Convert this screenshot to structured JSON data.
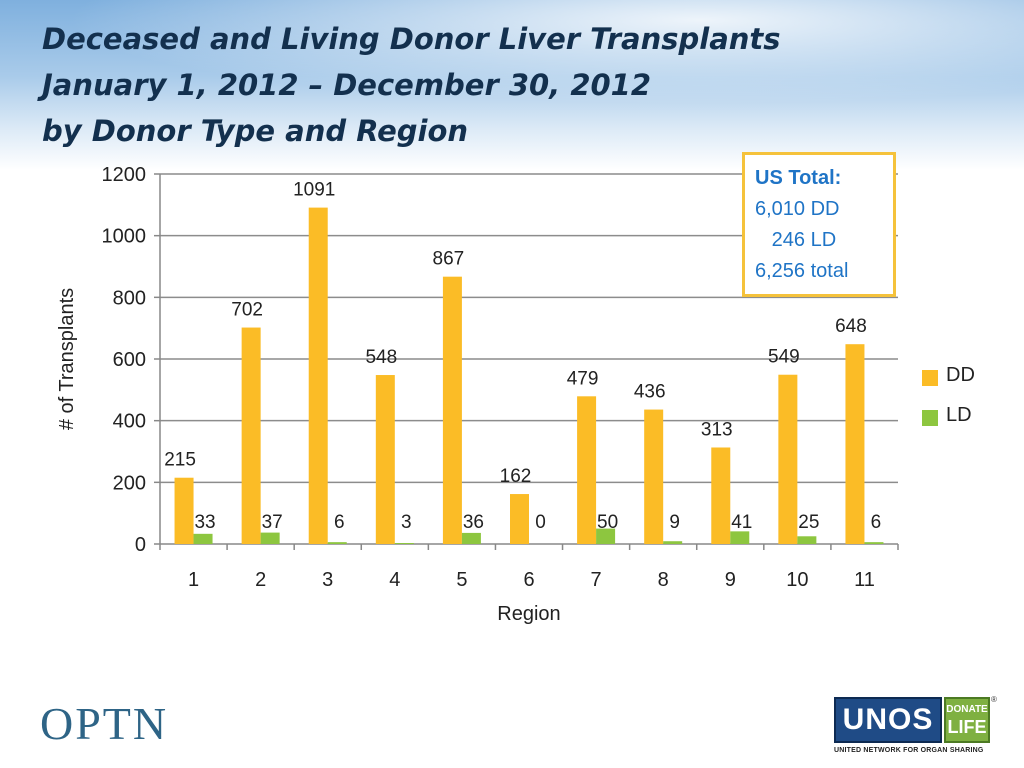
{
  "title": {
    "line1": "Deceased and Living Donor Liver Transplants",
    "line2": "January 1, 2012 – December 30, 2012",
    "line3": "by Donor Type and Region"
  },
  "us_total_box": {
    "heading": "US Total:",
    "dd": "6,010 DD",
    "ld": "   246 LD",
    "total": "6,256 total",
    "border_color": "#f5c23b",
    "text_color": "#1f74c6"
  },
  "chart_data": {
    "type": "bar",
    "xlabel": "Region",
    "ylabel": "# of Transplants",
    "ylim": [
      0,
      1200
    ],
    "yticks": [
      0,
      200,
      400,
      600,
      800,
      1000,
      1200
    ],
    "grid": true,
    "legend_position": "right",
    "categories": [
      "1",
      "2",
      "3",
      "4",
      "5",
      "6",
      "7",
      "8",
      "9",
      "10",
      "11"
    ],
    "series": [
      {
        "name": "DD",
        "color": "#fbbc26",
        "values": [
          215,
          702,
          1091,
          548,
          867,
          162,
          479,
          436,
          313,
          549,
          648
        ]
      },
      {
        "name": "LD",
        "color": "#8dc63f",
        "values": [
          33,
          37,
          6,
          3,
          36,
          0,
          50,
          9,
          41,
          25,
          6
        ]
      }
    ]
  },
  "footer": {
    "optn_logo": "OPTN",
    "unos_logo": "UNOS",
    "donate_top": "DONATE",
    "donate_bottom": "LIFE",
    "registered": "®",
    "unos_tagline": "UNITED NETWORK FOR ORGAN SHARING"
  }
}
